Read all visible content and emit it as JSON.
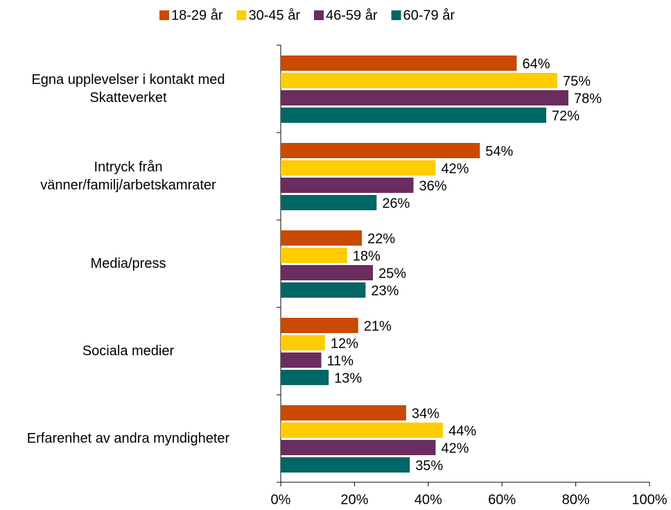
{
  "chart_data": {
    "type": "barh",
    "categories": [
      "Egna upplevelser i kontakt med\nSkatteverket",
      "Intryck från\nvänner/familj/arbetskamrater",
      "Media/press",
      "Sociala medier",
      "Erfarenhet av andra myndigheter"
    ],
    "series": [
      {
        "name": "18-29 år",
        "color": "#c94a00",
        "values": [
          64,
          54,
          22,
          21,
          34
        ],
        "value_labels": [
          "64%",
          "54%",
          "22%",
          "21%",
          "34%"
        ]
      },
      {
        "name": "30-45 år",
        "color": "#ffcc00",
        "values": [
          75,
          42,
          18,
          12,
          44
        ],
        "value_labels": [
          "75%",
          "42%",
          "18%",
          "12%",
          "44%"
        ]
      },
      {
        "name": "46-59 år",
        "color": "#6b2c5f",
        "values": [
          78,
          36,
          25,
          11,
          42
        ],
        "value_labels": [
          "78%",
          "36%",
          "25%",
          "11%",
          "42%"
        ]
      },
      {
        "name": "60-79 år",
        "color": "#006666",
        "values": [
          72,
          26,
          23,
          13,
          35
        ],
        "value_labels": [
          "72%",
          "26%",
          "23%",
          "13%",
          "35%"
        ]
      }
    ],
    "xlim": [
      0,
      100
    ],
    "xticks": [
      {
        "value": 0,
        "label": "0%"
      },
      {
        "value": 20,
        "label": "20%"
      },
      {
        "value": 40,
        "label": "40%"
      },
      {
        "value": 60,
        "label": "60%"
      },
      {
        "value": 80,
        "label": "80%"
      },
      {
        "value": 100,
        "label": "100%"
      }
    ],
    "legend": "top"
  }
}
